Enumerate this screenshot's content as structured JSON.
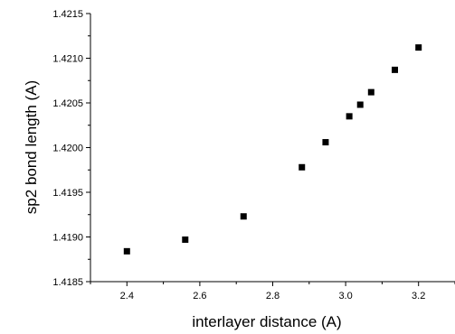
{
  "chart_data": {
    "type": "scatter",
    "title": "",
    "xlabel": "interlayer distance (A)",
    "ylabel": "sp2 bond length (A)",
    "xlim": [
      2.3,
      3.3
    ],
    "ylim": [
      1.4185,
      1.4215
    ],
    "x_ticks": [
      "2.4",
      "2.6",
      "2.8",
      "3.0",
      "3.2"
    ],
    "y_ticks": [
      "1.4185",
      "1.4190",
      "1.4195",
      "1.4200",
      "1.4205",
      "1.4210",
      "1.4215"
    ],
    "x_tick_values": [
      2.4,
      2.6,
      2.8,
      3.0,
      3.2
    ],
    "y_tick_values": [
      1.4185,
      1.419,
      1.4195,
      1.42,
      1.4205,
      1.421,
      1.4215
    ],
    "grid": false,
    "legend": "none",
    "series": [
      {
        "marker": "square",
        "color": "#000000",
        "x": [
          2.4,
          2.56,
          2.72,
          2.88,
          2.945,
          3.01,
          3.04,
          3.07,
          3.135,
          3.2
        ],
        "y": [
          1.41884,
          1.41897,
          1.41923,
          1.41978,
          1.42006,
          1.42035,
          1.42048,
          1.42062,
          1.42087,
          1.42112
        ]
      }
    ]
  }
}
